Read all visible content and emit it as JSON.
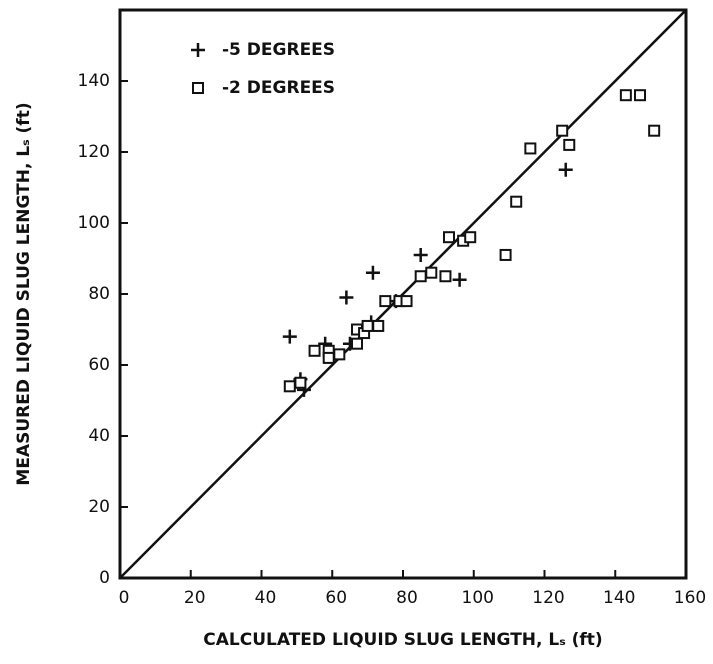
{
  "chart_data": {
    "type": "scatter",
    "xlabel": "CALCULATED LIQUID SLUG LENGTH, Lₛ (ft)",
    "ylabel": "MEASURED LIQUID SLUG LENGTH, Lₛ (ft)",
    "xlim": [
      0,
      160
    ],
    "ylim": [
      0,
      160
    ],
    "xticks": [
      0,
      20,
      40,
      60,
      80,
      100,
      120,
      140,
      160
    ],
    "yticks": [
      0,
      20,
      40,
      60,
      80,
      100,
      120,
      140
    ],
    "diagonal": true,
    "legend": "upper left",
    "series": [
      {
        "name": "-5 DEGREES",
        "marker": "plus",
        "color": "#111",
        "x": [
          48,
          58,
          64,
          71.5,
          85,
          96,
          126,
          52,
          51,
          65,
          69,
          71,
          78
        ],
        "values": [
          68,
          66,
          79,
          86,
          91,
          84,
          115,
          53,
          56,
          66,
          70,
          72,
          78
        ]
      },
      {
        "name": "-2 DEGREES",
        "marker": "square",
        "color": "#111",
        "x": [
          48,
          51,
          55,
          59,
          59,
          62,
          67,
          67,
          69,
          70,
          73,
          75,
          79,
          81,
          85,
          88,
          92,
          93,
          97,
          99,
          109,
          112,
          116,
          125,
          127,
          143,
          147,
          151
        ],
        "values": [
          54,
          55,
          64,
          64,
          62,
          63,
          66,
          70,
          69,
          71,
          71,
          78,
          78,
          78,
          85,
          86,
          85,
          96,
          95,
          96,
          91,
          106,
          121,
          126,
          122,
          136,
          136,
          126
        ]
      }
    ]
  }
}
